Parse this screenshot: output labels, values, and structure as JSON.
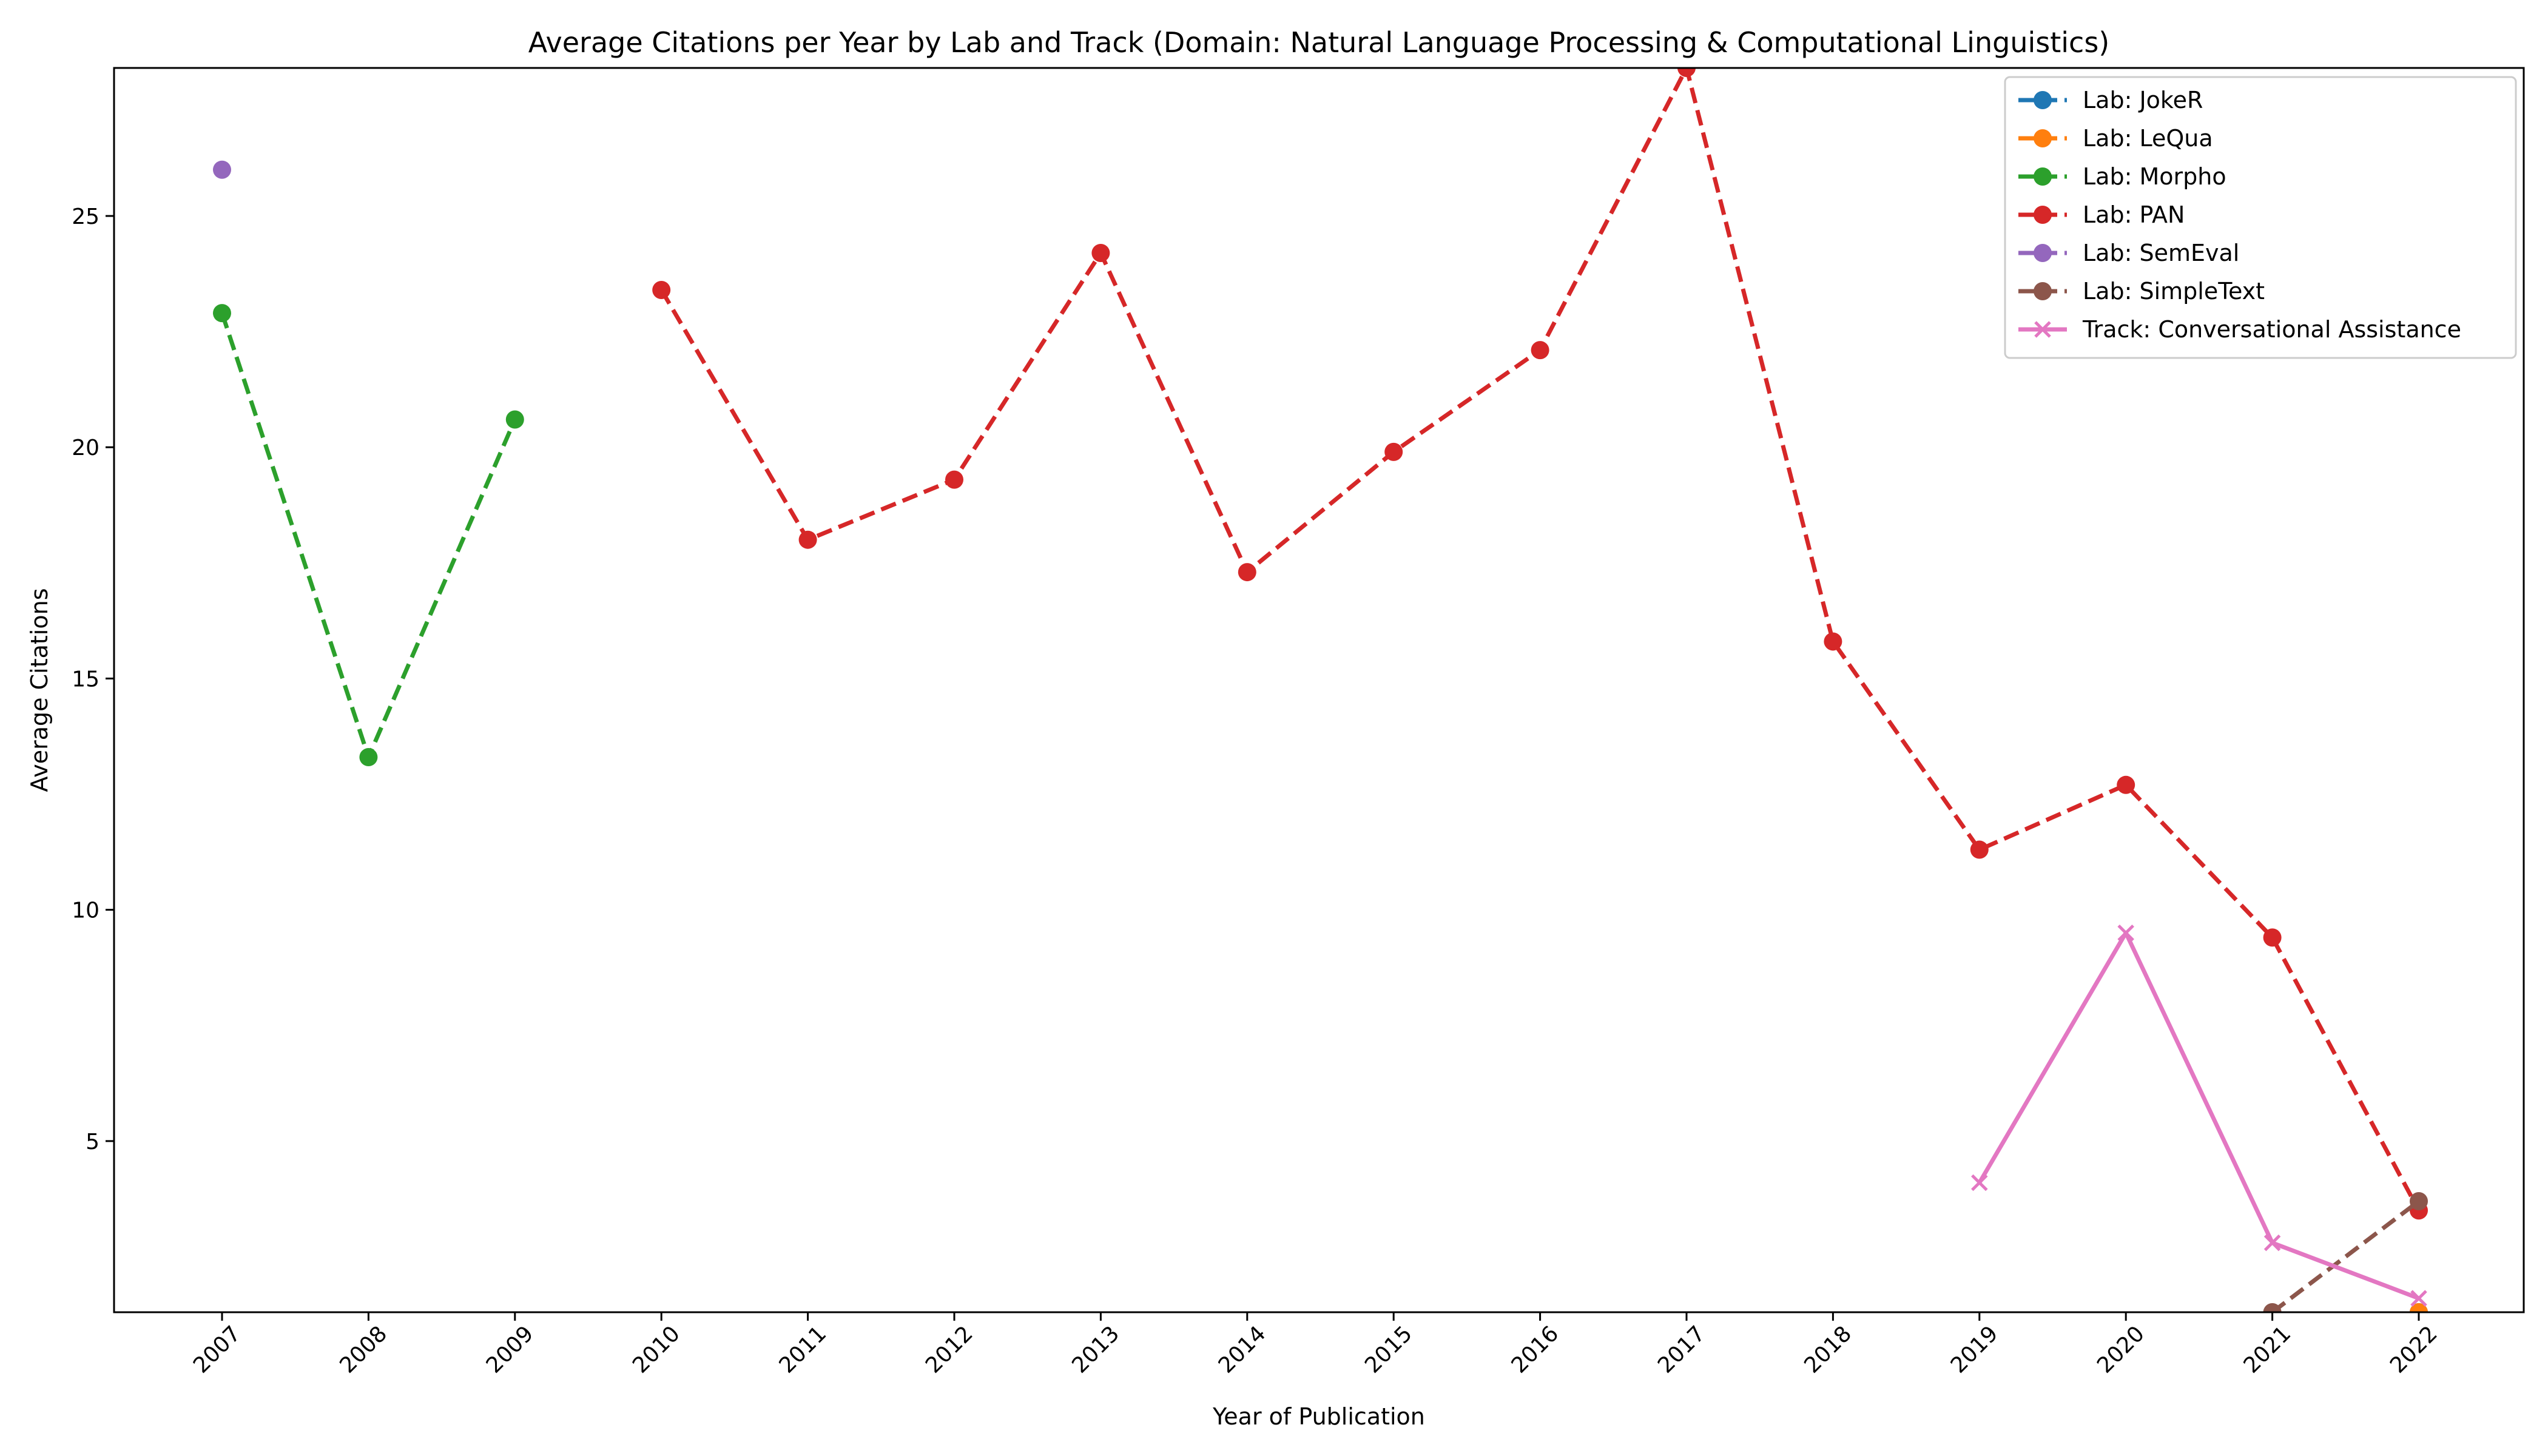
{
  "chart_data": {
    "type": "line",
    "title": "Average Citations per Year by Lab and Track (Domain: Natural Language Processing & Computational Linguistics)",
    "xlabel": "Year of Publication",
    "ylabel": "Average Citations",
    "categories": [
      "2007",
      "2008",
      "2009",
      "2010",
      "2011",
      "2012",
      "2013",
      "2014",
      "2015",
      "2016",
      "2017",
      "2018",
      "2019",
      "2020",
      "2021",
      "2022"
    ],
    "ylim": [
      1.3,
      28.2
    ],
    "yticks": [
      5,
      10,
      15,
      20,
      25
    ],
    "grid": false,
    "legend_position": "top-right",
    "series": [
      {
        "name": "Lab: JokeR",
        "color": "#1f77b4",
        "linestyle": "dashed",
        "marker": "circle",
        "points": [
          [
            2022,
            1.3
          ]
        ]
      },
      {
        "name": "Lab: LeQua",
        "color": "#ff7f0e",
        "linestyle": "dashed",
        "marker": "circle",
        "points": [
          [
            2022,
            1.3
          ]
        ]
      },
      {
        "name": "Lab: Morpho",
        "color": "#2ca02c",
        "linestyle": "dashed",
        "marker": "circle",
        "points": [
          [
            2007,
            22.9
          ],
          [
            2008,
            13.3
          ],
          [
            2009,
            20.6
          ]
        ]
      },
      {
        "name": "Lab: PAN",
        "color": "#d62728",
        "linestyle": "dashed",
        "marker": "circle",
        "points": [
          [
            2010,
            23.4
          ],
          [
            2011,
            18.0
          ],
          [
            2012,
            19.3
          ],
          [
            2013,
            24.2
          ],
          [
            2014,
            17.3
          ],
          [
            2015,
            19.9
          ],
          [
            2016,
            22.1
          ],
          [
            2017,
            28.2
          ],
          [
            2018,
            15.8
          ],
          [
            2019,
            11.3
          ],
          [
            2020,
            12.7
          ],
          [
            2021,
            9.4
          ],
          [
            2022,
            3.5
          ]
        ]
      },
      {
        "name": "Lab: SemEval",
        "color": "#9467bd",
        "linestyle": "dashed",
        "marker": "circle",
        "points": [
          [
            2007,
            26.0
          ]
        ]
      },
      {
        "name": "Lab: SimpleText",
        "color": "#8c564b",
        "linestyle": "dashed",
        "marker": "circle",
        "points": [
          [
            2021,
            1.3
          ],
          [
            2022,
            3.7
          ]
        ]
      },
      {
        "name": "Track: Conversational Assistance",
        "color": "#e377c2",
        "linestyle": "solid",
        "marker": "x",
        "points": [
          [
            2019,
            4.1
          ],
          [
            2020,
            9.5
          ],
          [
            2021,
            2.8
          ],
          [
            2022,
            1.6
          ]
        ]
      }
    ]
  }
}
